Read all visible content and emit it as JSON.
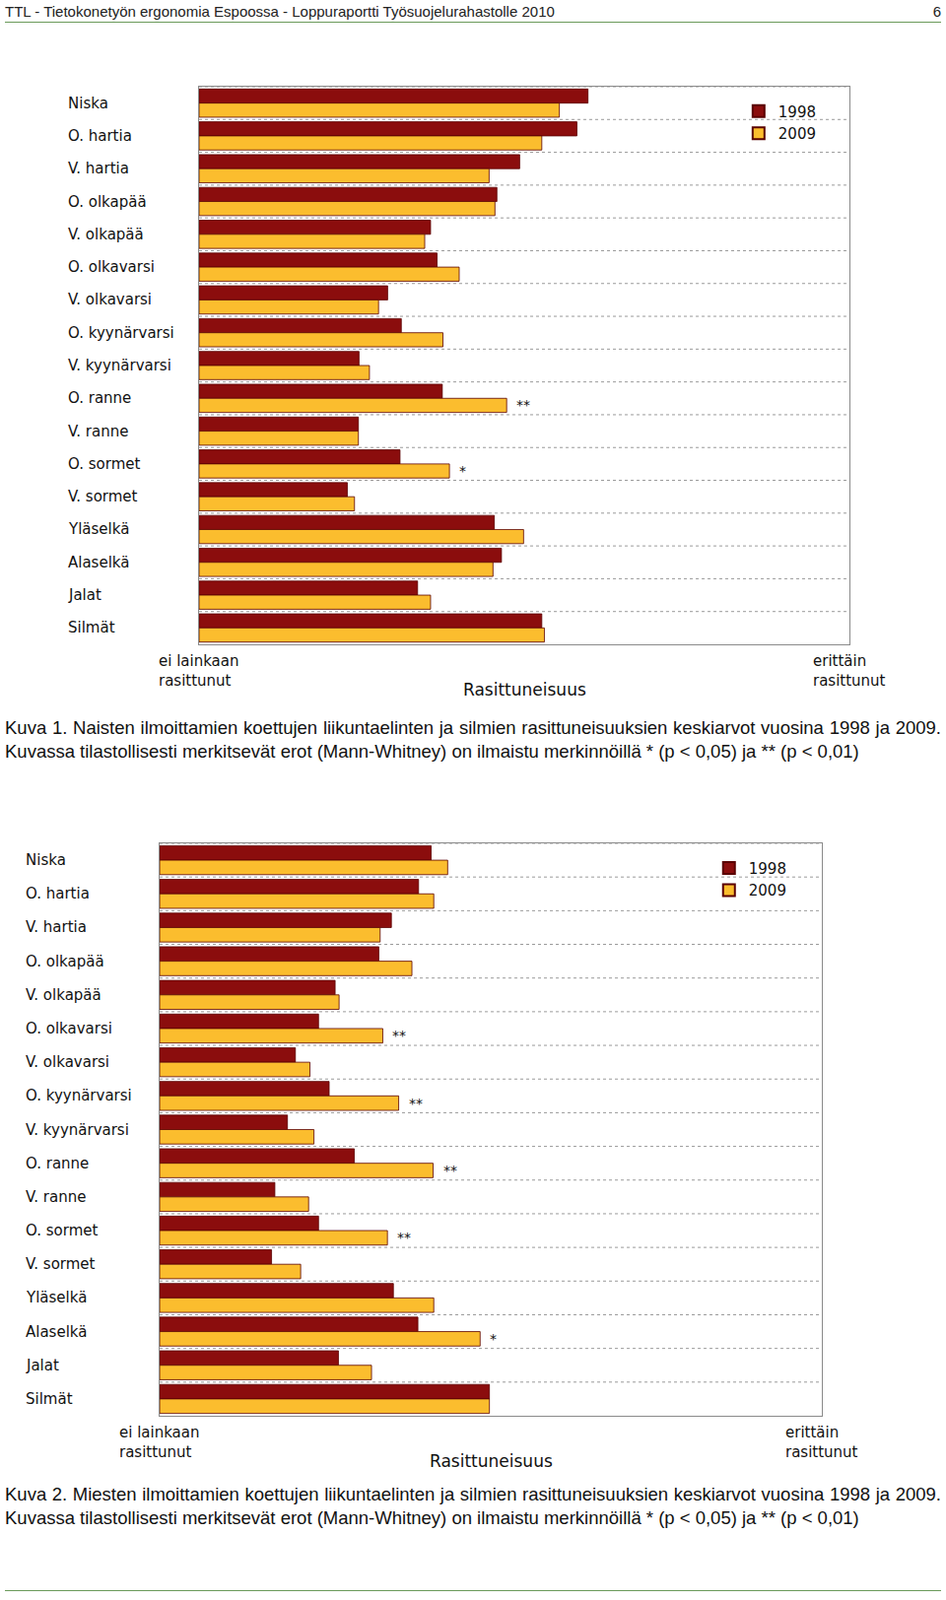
{
  "header": {
    "title": "TTL - Tietokonetyön ergonomia Espoossa - Loppuraportti Työsuojelurahastolle 2010",
    "page": "6"
  },
  "chart_data": [
    {
      "type": "bar",
      "orientation": "horizontal",
      "categories": [
        "Niska",
        "O. hartia",
        "V. hartia",
        "O. olkapää",
        "V. olkapää",
        "O. olkavarsi",
        "V. olkavarsi",
        "O. kyynärvarsi",
        "V. kyynärvarsi",
        "O. ranne",
        "V. ranne",
        "O. sormet",
        "V. sormet",
        "Yläselkä",
        "Alaselkä",
        "Jalat",
        "Silmät"
      ],
      "series": [
        {
          "name": "1998",
          "color": "#8b0d0d",
          "values": [
            59.8,
            58.1,
            49.3,
            45.8,
            35.6,
            36.6,
            29.0,
            31.1,
            24.6,
            37.4,
            24.5,
            30.9,
            22.8,
            45.4,
            46.5,
            33.6,
            52.7
          ]
        },
        {
          "name": "2009",
          "color": "#fbbd2e",
          "values": [
            55.4,
            52.7,
            44.6,
            45.5,
            34.7,
            40.0,
            27.6,
            37.5,
            26.2,
            47.3,
            24.5,
            38.5,
            23.9,
            49.9,
            45.2,
            35.6,
            53.1
          ]
        }
      ],
      "xlim": [
        0,
        100
      ],
      "tick_labels": false,
      "grid": true,
      "legend": "top right",
      "xlabel": "Rasittuneisuus",
      "axis_end_labels": [
        "ei lainkaan\nrasittunut",
        "erittäin\nrasittunut"
      ],
      "annotations": [
        {
          "category": "O. ranne",
          "series": "2009",
          "text": "**"
        },
        {
          "category": "O. sormet",
          "series": "2009",
          "text": "*"
        }
      ],
      "caption": "Kuva 1. Naisten ilmoittamien koettujen liikuntaelinten ja silmien rasittuneisuuksien keskiarvot vuosina 1998 ja 2009. Kuvassa tilastollisesti merkitsevät erot (Mann-Whitney) on ilmaistu merkinnöillä * (p < 0,05) ja ** (p < 0,01)"
    },
    {
      "type": "bar",
      "orientation": "horizontal",
      "categories": [
        "Niska",
        "O. hartia",
        "V. hartia",
        "O. olkapää",
        "V. olkapää",
        "O. olkavarsi",
        "V. olkavarsi",
        "O. kyynärvarsi",
        "V. kyynärvarsi",
        "O. ranne",
        "V. ranne",
        "O. sormet",
        "V. sormet",
        "Yläselkä",
        "Alaselkä",
        "Jalat",
        "Silmät"
      ],
      "series": [
        {
          "name": "1998",
          "color": "#8b0d0d",
          "values": [
            41.0,
            39.1,
            35.0,
            33.1,
            26.5,
            24.0,
            20.5,
            25.6,
            19.3,
            29.4,
            17.4,
            24.0,
            16.9,
            35.3,
            39.0,
            27.0,
            49.8
          ]
        },
        {
          "name": "2009",
          "color": "#fbbd2e",
          "values": [
            43.5,
            41.4,
            33.3,
            38.1,
            27.1,
            33.7,
            22.7,
            36.1,
            23.3,
            41.3,
            22.5,
            34.4,
            21.3,
            41.4,
            48.4,
            32.0,
            49.8
          ]
        }
      ],
      "xlim": [
        0,
        100
      ],
      "tick_labels": false,
      "grid": true,
      "legend": "top right",
      "xlabel": "Rasittuneisuus",
      "axis_end_labels": [
        "ei lainkaan\nrasittunut",
        "erittäin\nrasittunut"
      ],
      "annotations": [
        {
          "category": "O. olkavarsi",
          "series": "2009",
          "text": "**"
        },
        {
          "category": "O. kyynärvarsi",
          "series": "2009",
          "text": "**"
        },
        {
          "category": "O. ranne",
          "series": "2009",
          "text": "**"
        },
        {
          "category": "O. sormet",
          "series": "2009",
          "text": "**"
        },
        {
          "category": "Alaselkä",
          "series": "2009",
          "text": "*"
        }
      ],
      "caption": "Kuva 2. Miesten ilmoittamien koettujen liikuntaelinten ja silmien rasittuneisuuksien keskiarvot vuosina 1998 ja 2009. Kuvassa tilastollisesti merkitsevät erot (Mann-Whitney) on ilmaistu merkinnöillä * (p < 0,05) ja ** (p < 0,01)"
    }
  ]
}
